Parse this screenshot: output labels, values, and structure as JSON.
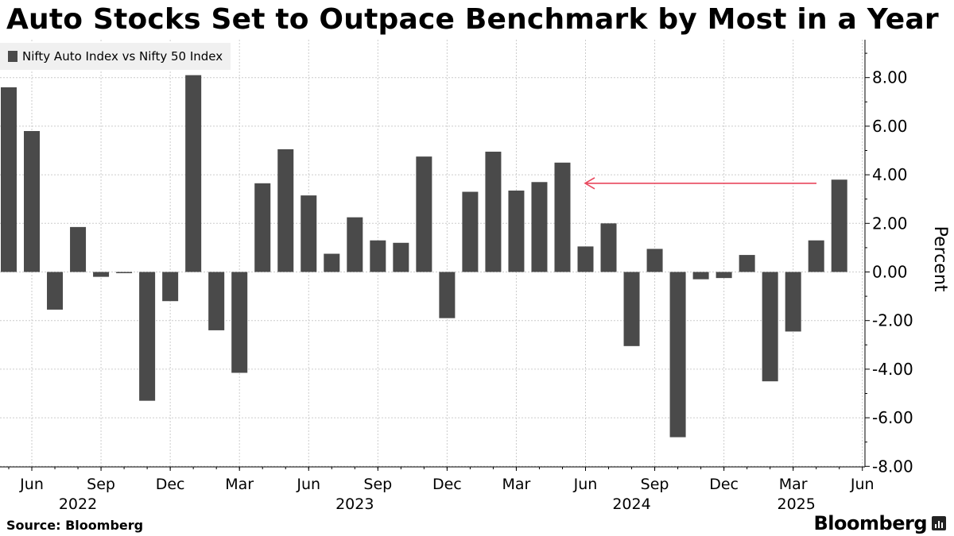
{
  "title": "Auto Stocks Set to Outpace Benchmark by Most in a Year",
  "legend": {
    "label": "Nifty Auto Index vs Nifty 50 Index",
    "color": "#4a4a4a"
  },
  "source": "Source: Bloomberg",
  "brand": "Bloomberg",
  "colors": {
    "bar": "#4a4a4a",
    "grid": "#cccccc",
    "arrow": "#e8465c",
    "axis": "#000000"
  },
  "chart_data": {
    "type": "bar",
    "title": "Auto Stocks Set to Outpace Benchmark by Most in a Year",
    "ylabel": "Percent",
    "ylim": [
      -8.5,
      9.5
    ],
    "yticks": [
      8,
      6,
      4,
      2,
      0,
      -2,
      -4,
      -6,
      -8
    ],
    "ytick_labels": [
      "8.00",
      "6.00",
      "4.00",
      "2.00",
      "0.00",
      "-2.00",
      "-4.00",
      "-6.00",
      "-8.00"
    ],
    "series": [
      {
        "name": "Nifty Auto Index vs Nifty 50 Index",
        "categories": [
          "2022-05",
          "2022-06",
          "2022-07",
          "2022-08",
          "2022-09",
          "2022-10",
          "2022-11",
          "2022-12",
          "2023-01",
          "2023-02",
          "2023-03",
          "2023-04",
          "2023-05",
          "2023-06",
          "2023-07",
          "2023-08",
          "2023-09",
          "2023-10",
          "2023-11",
          "2023-12",
          "2024-01",
          "2024-02",
          "2024-03",
          "2024-04",
          "2024-05",
          "2024-06",
          "2024-07",
          "2024-08",
          "2024-09",
          "2024-10",
          "2024-11",
          "2024-12",
          "2025-01",
          "2025-02",
          "2025-03",
          "2025-04",
          "2025-05"
        ],
        "values": [
          7.6,
          5.8,
          -1.55,
          1.85,
          -0.2,
          -0.05,
          -5.3,
          -1.2,
          8.1,
          -2.4,
          -4.15,
          3.65,
          5.05,
          3.15,
          0.75,
          2.25,
          1.3,
          1.2,
          4.75,
          -1.9,
          3.3,
          4.95,
          3.35,
          3.7,
          4.5,
          1.05,
          2.0,
          -3.05,
          0.95,
          -6.8,
          -0.3,
          -0.25,
          0.7,
          -4.5,
          -2.45,
          1.3,
          3.8
        ]
      }
    ],
    "xtick_labels": [
      {
        "month": "Jun",
        "year": "2022"
      },
      {
        "month": "Sep",
        "year": ""
      },
      {
        "month": "Dec",
        "year": ""
      },
      {
        "month": "Mar",
        "year": ""
      },
      {
        "month": "Jun",
        "year": "2023"
      },
      {
        "month": "Sep",
        "year": ""
      },
      {
        "month": "Dec",
        "year": ""
      },
      {
        "month": "Mar",
        "year": ""
      },
      {
        "month": "Jun",
        "year": "2024"
      },
      {
        "month": "Sep",
        "year": ""
      },
      {
        "month": "Dec",
        "year": ""
      },
      {
        "month": "Mar",
        "year": "2025"
      },
      {
        "month": "Jun",
        "year": ""
      }
    ],
    "year_labels": [
      "2022",
      "2023",
      "2024",
      "2025"
    ],
    "annotation": {
      "type": "arrow",
      "from_value": 3.65,
      "description": "arrow pointing left from latest bar to highest level in a year"
    }
  }
}
